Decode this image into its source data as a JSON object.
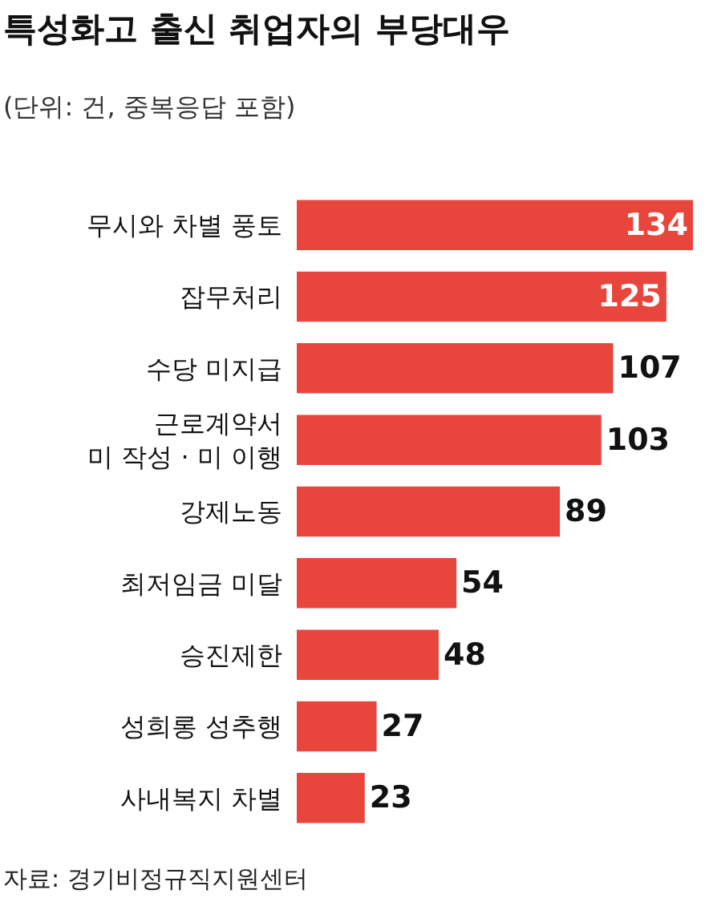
{
  "chart_data": {
    "type": "bar",
    "orientation": "horizontal",
    "title": "특성화고 출신 취업자의 부당대우",
    "subtitle": "(단위: 건, 중복응답 포함)",
    "categories": [
      "무시와 차별 풍토",
      "잡무처리",
      "수당 미지급",
      "근로계약서\n미 작성 · 미 이행",
      "강제노동",
      "최저임금 미달",
      "승진제한",
      "성희롱 성추행",
      "사내복지 차별"
    ],
    "values": [
      134,
      125,
      107,
      103,
      89,
      54,
      48,
      27,
      23
    ],
    "color": "#e8453c",
    "data_labels": true,
    "annotations": [
      "자료: 경기비정규직지원센터"
    ]
  }
}
